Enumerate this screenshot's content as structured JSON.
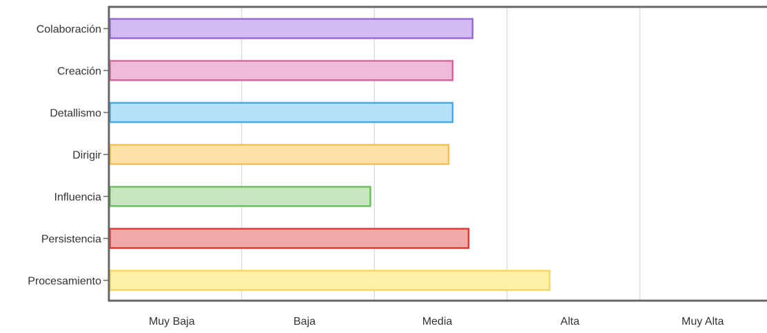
{
  "chart_data": {
    "type": "bar",
    "orientation": "horizontal",
    "categories": [
      "Colaboración",
      "Creación",
      "Detallismo",
      "Dirigir",
      "Influencia",
      "Persistencia",
      "Procesamiento"
    ],
    "values": [
      2.74,
      2.59,
      2.59,
      2.56,
      1.97,
      2.71,
      3.32
    ],
    "colors": [
      {
        "fill": "#d2bbf3",
        "stroke": "#9b6ad6"
      },
      {
        "fill": "#eebcd8",
        "stroke": "#d5679f"
      },
      {
        "fill": "#b5e0f5",
        "stroke": "#4ea9de"
      },
      {
        "fill": "#ffe0a6",
        "stroke": "#f5c04f"
      },
      {
        "fill": "#c8e5c0",
        "stroke": "#6cbf5e"
      },
      {
        "fill": "#f1aaa7",
        "stroke": "#dc3a35"
      },
      {
        "fill": "#fff0a8",
        "stroke": "#f3d668"
      }
    ],
    "x_tick_labels": [
      "Muy Baja",
      "Baja",
      "Media",
      "Alta",
      "Muy Alta"
    ],
    "xlim": [
      0,
      5
    ],
    "grid": true,
    "title": "",
    "xlabel": "",
    "ylabel": ""
  }
}
